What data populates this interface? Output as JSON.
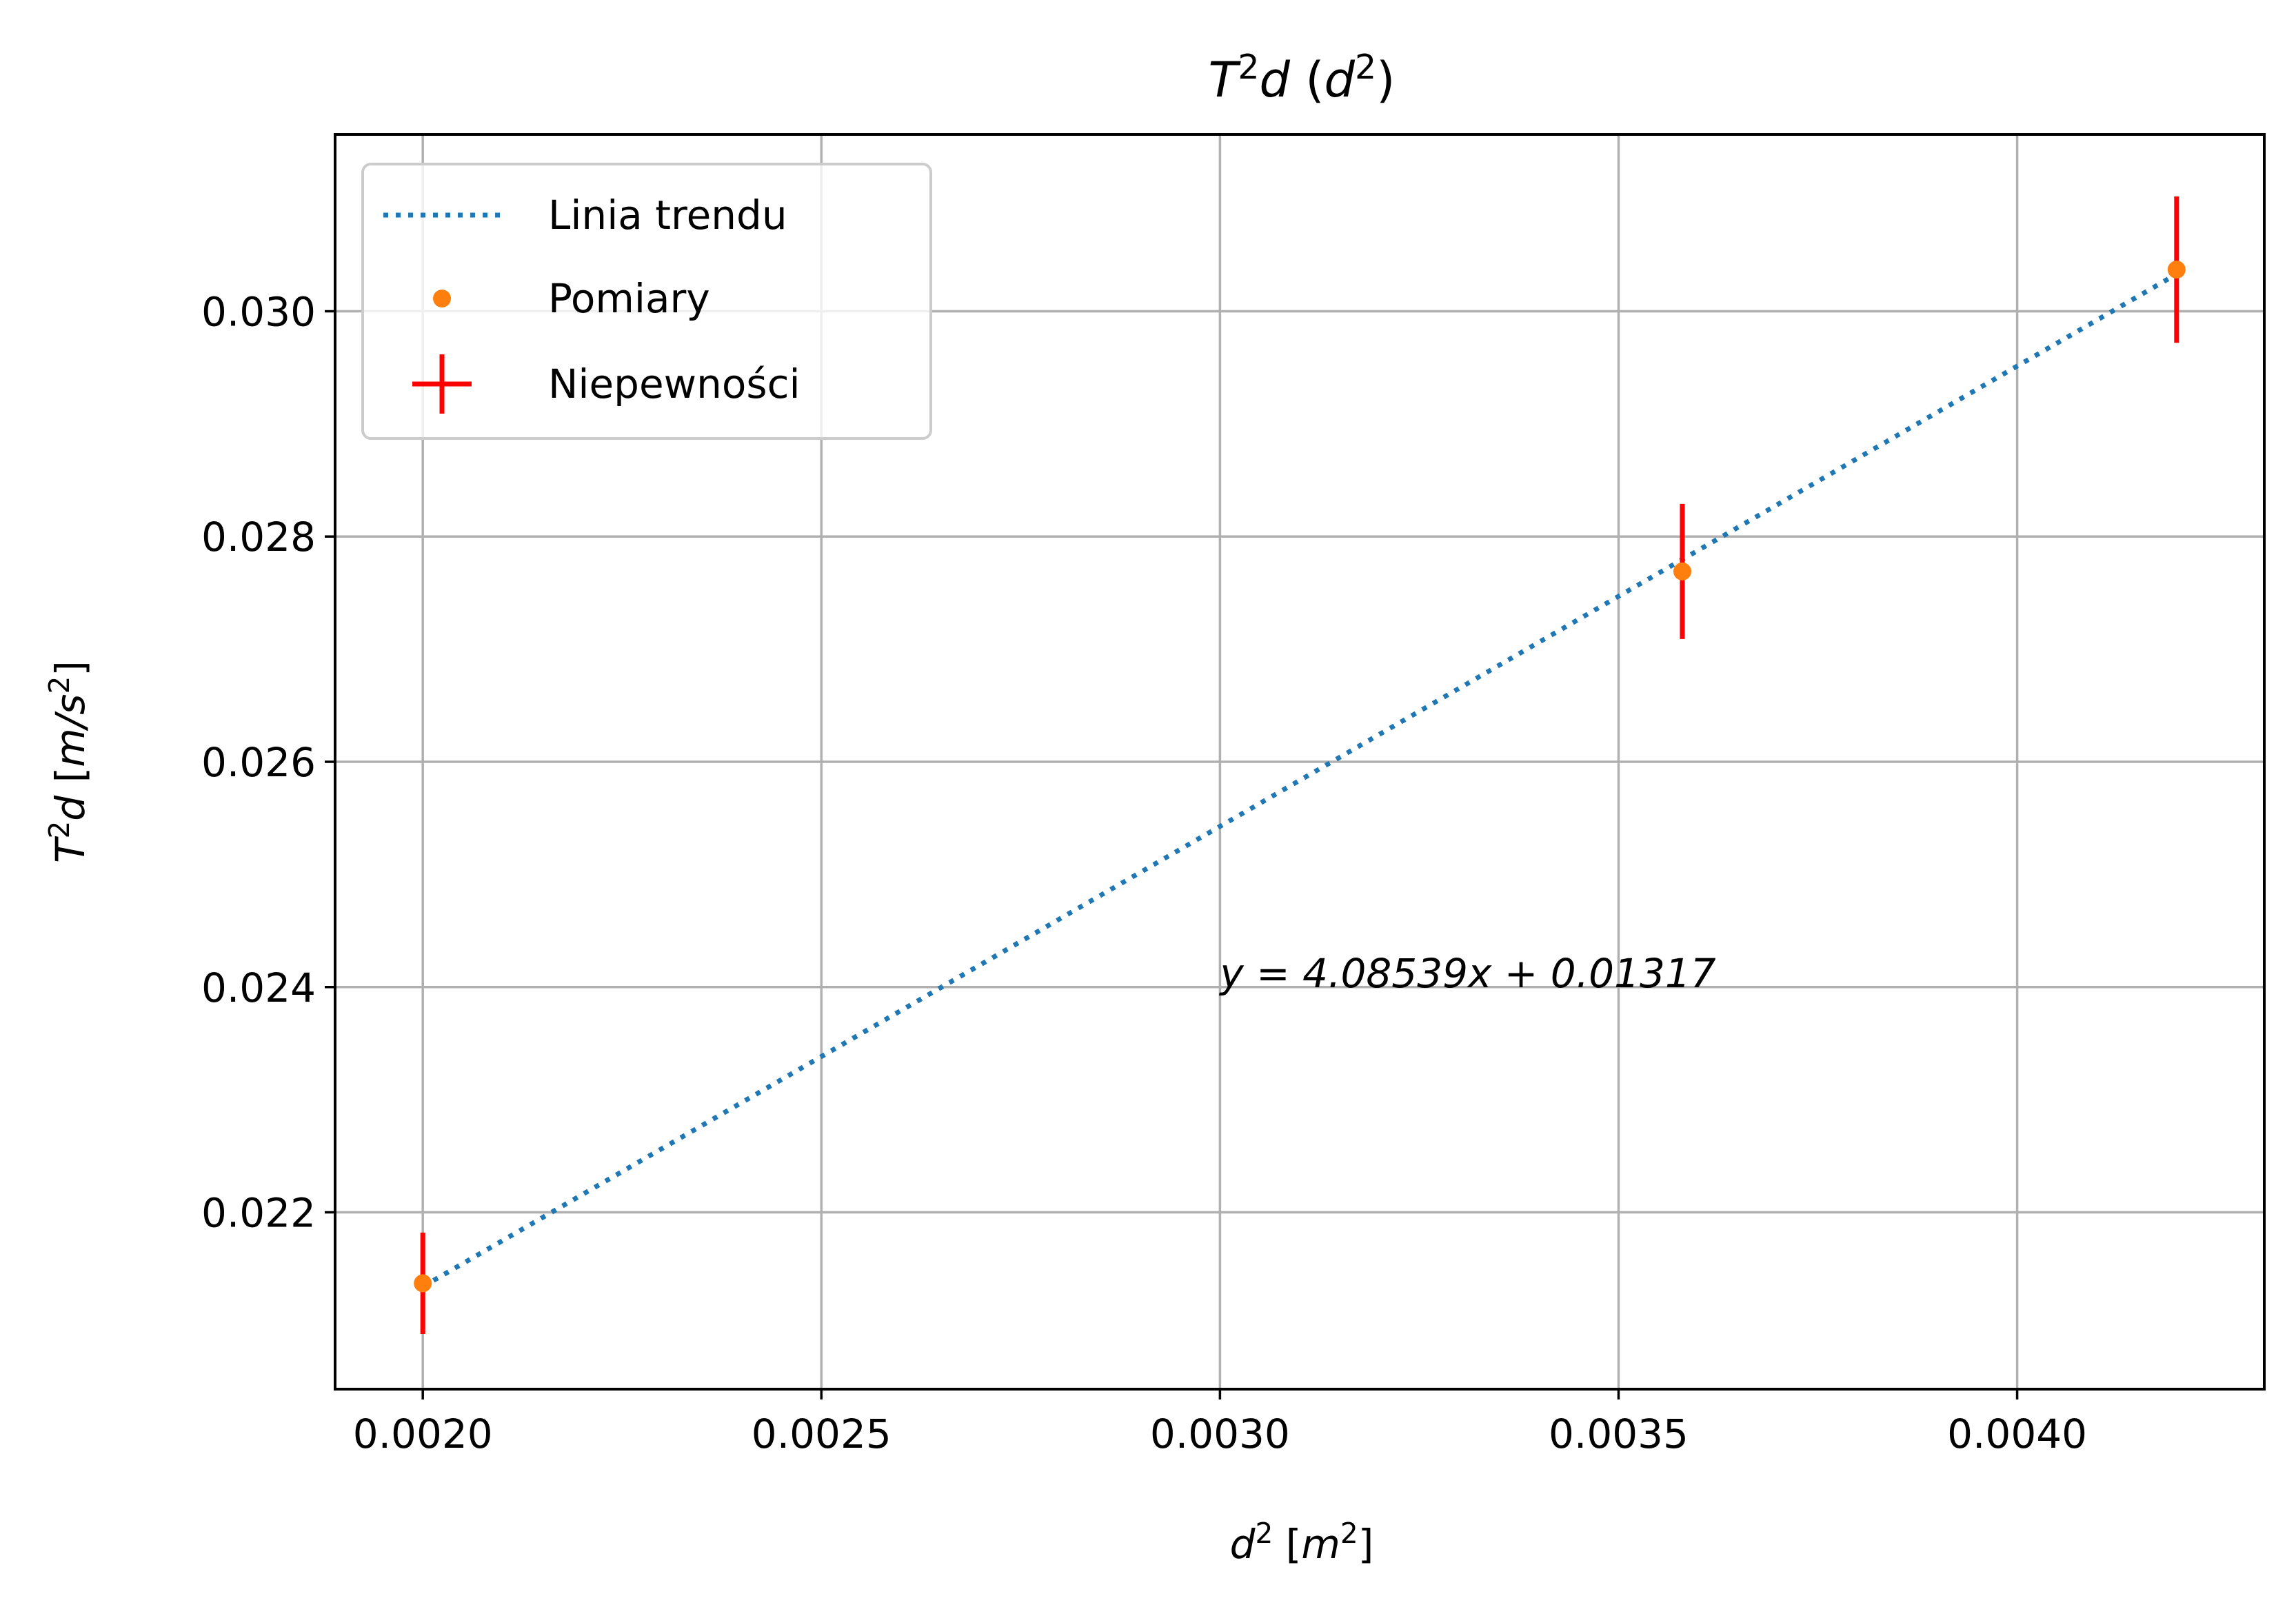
{
  "chart_data": {
    "type": "scatter",
    "title": {
      "prefix": "",
      "T": "T",
      "exp1": "2",
      "d": "d",
      "paren_open": " (",
      "d2": "d",
      "exp2": "2",
      "paren_close": ")"
    },
    "xlabel": {
      "var": "d",
      "exp": "2",
      "unit_open": " [",
      "unit_var": "m",
      "unit_exp": "2",
      "unit_close": "]"
    },
    "ylabel": {
      "T": "T",
      "exp1": "2",
      "d": "d",
      "unit_open": " [",
      "unit": "m/s",
      "unit_exp": "2",
      "unit_close": "]"
    },
    "xlim": [
      0.00189,
      0.00431
    ],
    "ylim": [
      0.02043,
      0.03157
    ],
    "x_ticks": [
      0.002,
      0.0025,
      0.003,
      0.0035,
      0.004
    ],
    "x_tick_labels": [
      "0.0020",
      "0.0025",
      "0.0030",
      "0.0035",
      "0.0040"
    ],
    "y_ticks": [
      0.022,
      0.024,
      0.026,
      0.028,
      0.03
    ],
    "y_tick_labels": [
      "0.022",
      "0.024",
      "0.026",
      "0.028",
      "0.030"
    ],
    "grid": true,
    "legend_position": "top-left",
    "series": [
      {
        "name": "Linia trendu",
        "kind": "line",
        "style": "dotted",
        "color": "#1f77b4",
        "x": [
          0.002,
          0.0042
        ],
        "y": [
          0.02134,
          0.03033
        ]
      },
      {
        "name": "Pomiary",
        "kind": "points",
        "color": "#ff7f0e",
        "x": [
          0.002,
          0.00358,
          0.0042
        ],
        "y": [
          0.02137,
          0.02769,
          0.03037
        ]
      },
      {
        "name": "Niepewności",
        "kind": "errorbar",
        "color": "#ff0000",
        "x": [
          0.002,
          0.00358,
          0.0042
        ],
        "y": [
          0.02137,
          0.02769,
          0.03037
        ],
        "yerr": [
          0.00045,
          0.0006,
          0.00065
        ]
      }
    ],
    "annotation": {
      "text": "y = 4.08539x + 0.01317",
      "x": 0.003,
      "y": 0.024
    }
  }
}
